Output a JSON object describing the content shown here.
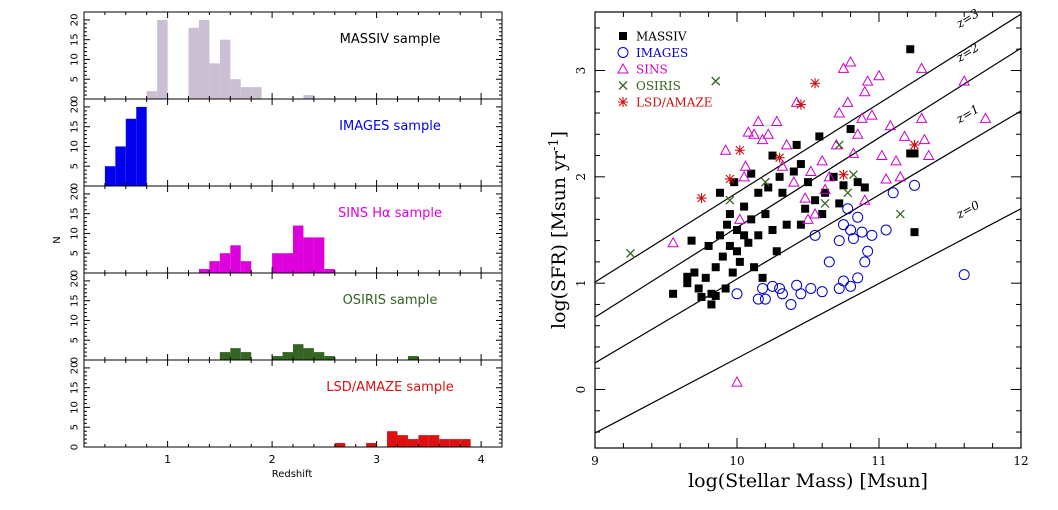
{
  "chart_data": [
    {
      "type": "bar",
      "xlabel": "Redshift",
      "ylabel": "N",
      "xlim": [
        0.2,
        4.2
      ],
      "x_ticks": [
        "1",
        "2",
        "3",
        "4"
      ],
      "y_ticks": [
        "0",
        "5",
        "10",
        "15",
        "20"
      ],
      "bin_width": 0.1,
      "panels": [
        {
          "label": "MASSIV sample",
          "color": "#cbbfd4",
          "ylim": [
            0,
            22
          ],
          "bins": [
            {
              "x": 0.8,
              "n": 2
            },
            {
              "x": 0.9,
              "n": 20
            },
            {
              "x": 1.2,
              "n": 18
            },
            {
              "x": 1.3,
              "n": 20
            },
            {
              "x": 1.4,
              "n": 9
            },
            {
              "x": 1.5,
              "n": 15
            },
            {
              "x": 1.6,
              "n": 5
            },
            {
              "x": 1.7,
              "n": 3
            },
            {
              "x": 1.8,
              "n": 3
            },
            {
              "x": 2.3,
              "n": 1
            }
          ]
        },
        {
          "label": "IMAGES sample",
          "color": "#0000ee",
          "ylim": [
            0,
            22
          ],
          "bins": [
            {
              "x": 0.4,
              "n": 5
            },
            {
              "x": 0.5,
              "n": 10
            },
            {
              "x": 0.6,
              "n": 17
            },
            {
              "x": 0.7,
              "n": 20
            }
          ]
        },
        {
          "label": "SINS Hα sample",
          "color": "#dd00dd",
          "ylim": [
            0,
            22
          ],
          "bins": [
            {
              "x": 1.3,
              "n": 1
            },
            {
              "x": 1.4,
              "n": 3
            },
            {
              "x": 1.5,
              "n": 5
            },
            {
              "x": 1.6,
              "n": 7
            },
            {
              "x": 1.7,
              "n": 3
            },
            {
              "x": 2.0,
              "n": 5
            },
            {
              "x": 2.1,
              "n": 5
            },
            {
              "x": 2.2,
              "n": 12
            },
            {
              "x": 2.3,
              "n": 9
            },
            {
              "x": 2.4,
              "n": 9
            },
            {
              "x": 2.5,
              "n": 1
            }
          ]
        },
        {
          "label": "OSIRIS sample",
          "color": "#336622",
          "ylim": [
            0,
            22
          ],
          "bins": [
            {
              "x": 1.5,
              "n": 2
            },
            {
              "x": 1.6,
              "n": 3
            },
            {
              "x": 1.7,
              "n": 2
            },
            {
              "x": 2.0,
              "n": 1
            },
            {
              "x": 2.1,
              "n": 2
            },
            {
              "x": 2.2,
              "n": 4
            },
            {
              "x": 2.3,
              "n": 3
            },
            {
              "x": 2.4,
              "n": 2
            },
            {
              "x": 2.5,
              "n": 1
            },
            {
              "x": 3.3,
              "n": 1
            }
          ]
        },
        {
          "label": "LSD/AMAZE sample",
          "color": "#dd1111",
          "ylim": [
            0,
            22
          ],
          "bins": [
            {
              "x": 2.6,
              "n": 1
            },
            {
              "x": 2.9,
              "n": 1
            },
            {
              "x": 3.1,
              "n": 4
            },
            {
              "x": 3.2,
              "n": 3
            },
            {
              "x": 3.3,
              "n": 2
            },
            {
              "x": 3.4,
              "n": 3
            },
            {
              "x": 3.5,
              "n": 3
            },
            {
              "x": 3.6,
              "n": 2
            },
            {
              "x": 3.7,
              "n": 2
            },
            {
              "x": 3.8,
              "n": 2
            }
          ]
        }
      ]
    },
    {
      "type": "scatter",
      "xlabel": "log(Stellar Mass) [Msun]",
      "ylabel": "log(SFR) [Msun yr",
      "ylabel_sup": "-1",
      "ylabel_tail": "]",
      "xlim": [
        9,
        12
      ],
      "ylim": [
        -0.55,
        3.55
      ],
      "x_ticks": [
        "9",
        "10",
        "11",
        "12"
      ],
      "y_ticks": [
        "0",
        "1",
        "2",
        "3"
      ],
      "lines": [
        {
          "label": "z=3",
          "points": [
            [
              9,
              1.01
            ],
            [
              12,
              3.53
            ]
          ]
        },
        {
          "label": "z=2",
          "points": [
            [
              9,
              0.68
            ],
            [
              12,
              3.21
            ]
          ]
        },
        {
          "label": "z=1",
          "points": [
            [
              9,
              0.25
            ],
            [
              12,
              2.62
            ]
          ]
        },
        {
          "label": "z=0",
          "points": [
            [
              9,
              -0.41
            ],
            [
              12,
              1.7
            ]
          ]
        }
      ],
      "series": [
        {
          "name": "MASSIV",
          "marker": "filled-square",
          "color": "#000000",
          "points": [
            [
              9.55,
              0.9
            ],
            [
              9.65,
              1.0
            ],
            [
              9.65,
              1.06
            ],
            [
              9.68,
              1.4
            ],
            [
              9.7,
              1.1
            ],
            [
              9.73,
              0.95
            ],
            [
              9.75,
              0.87
            ],
            [
              9.78,
              1.05
            ],
            [
              9.8,
              1.35
            ],
            [
              9.82,
              0.9
            ],
            [
              9.82,
              0.8
            ],
            [
              9.85,
              1.15
            ],
            [
              9.85,
              0.88
            ],
            [
              9.88,
              1.85
            ],
            [
              9.88,
              1.45
            ],
            [
              9.9,
              1.25
            ],
            [
              9.92,
              0.95
            ],
            [
              9.93,
              1.55
            ],
            [
              9.95,
              1.35
            ],
            [
              9.95,
              1.65
            ],
            [
              9.97,
              1.1
            ],
            [
              9.98,
              1.95
            ],
            [
              10.0,
              1.3
            ],
            [
              10.0,
              1.5
            ],
            [
              10.02,
              1.2
            ],
            [
              10.05,
              1.72
            ],
            [
              10.05,
              1.45
            ],
            [
              10.08,
              1.38
            ],
            [
              10.1,
              2.03
            ],
            [
              10.1,
              1.6
            ],
            [
              10.12,
              1.15
            ],
            [
              10.15,
              1.85
            ],
            [
              10.15,
              1.45
            ],
            [
              10.18,
              1.05
            ],
            [
              10.2,
              1.65
            ],
            [
              10.22,
              1.9
            ],
            [
              10.25,
              1.5
            ],
            [
              10.28,
              1.3
            ],
            [
              10.3,
              2.0
            ],
            [
              10.32,
              1.85
            ],
            [
              10.35,
              1.55
            ],
            [
              10.4,
              2.05
            ],
            [
              10.42,
              2.3
            ],
            [
              10.45,
              2.12
            ],
            [
              10.48,
              1.7
            ],
            [
              10.5,
              1.95
            ],
            [
              10.55,
              1.78
            ],
            [
              10.58,
              2.38
            ],
            [
              10.6,
              1.65
            ],
            [
              10.62,
              1.85
            ],
            [
              10.68,
              2.0
            ],
            [
              10.72,
              1.75
            ],
            [
              10.75,
              1.92
            ],
            [
              10.8,
              2.45
            ],
            [
              10.85,
              1.95
            ],
            [
              10.9,
              1.9
            ],
            [
              11.22,
              2.22
            ],
            [
              11.25,
              2.22
            ],
            [
              11.25,
              1.48
            ],
            [
              11.22,
              3.2
            ],
            [
              10.45,
              1.55
            ],
            [
              10.25,
              2.2
            ]
          ]
        },
        {
          "name": "IMAGES",
          "marker": "open-circle",
          "color": "#0000cc",
          "points": [
            [
              10.0,
              0.9
            ],
            [
              10.15,
              0.85
            ],
            [
              10.18,
              0.95
            ],
            [
              10.2,
              0.85
            ],
            [
              10.25,
              0.97
            ],
            [
              10.3,
              0.95
            ],
            [
              10.32,
              0.9
            ],
            [
              10.38,
              0.8
            ],
            [
              10.42,
              0.98
            ],
            [
              10.45,
              0.9
            ],
            [
              10.52,
              0.95
            ],
            [
              10.6,
              0.92
            ],
            [
              10.65,
              1.2
            ],
            [
              10.72,
              0.95
            ],
            [
              10.75,
              1.02
            ],
            [
              10.8,
              0.97
            ],
            [
              10.85,
              1.05
            ],
            [
              10.9,
              1.2
            ],
            [
              10.72,
              1.4
            ],
            [
              10.75,
              1.55
            ],
            [
              10.78,
              1.7
            ],
            [
              10.8,
              1.5
            ],
            [
              10.82,
              1.42
            ],
            [
              10.85,
              1.62
            ],
            [
              10.88,
              1.48
            ],
            [
              10.92,
              1.3
            ],
            [
              10.95,
              1.45
            ],
            [
              11.05,
              1.5
            ],
            [
              11.1,
              1.85
            ],
            [
              11.25,
              1.92
            ],
            [
              10.55,
              1.45
            ],
            [
              11.6,
              1.08
            ]
          ]
        },
        {
          "name": "SINS",
          "marker": "open-triangle",
          "color": "#cc00cc",
          "points": [
            [
              9.55,
              1.38
            ],
            [
              9.92,
              2.25
            ],
            [
              10.05,
              2.0
            ],
            [
              10.08,
              2.42
            ],
            [
              10.12,
              2.4
            ],
            [
              10.15,
              2.52
            ],
            [
              10.18,
              2.35
            ],
            [
              10.22,
              2.4
            ],
            [
              10.28,
              2.52
            ],
            [
              10.32,
              2.1
            ],
            [
              10.35,
              2.3
            ],
            [
              10.4,
              1.95
            ],
            [
              10.42,
              2.7
            ],
            [
              10.48,
              1.8
            ],
            [
              10.52,
              2.05
            ],
            [
              10.55,
              1.65
            ],
            [
              10.6,
              2.15
            ],
            [
              10.62,
              1.88
            ],
            [
              10.65,
              2.0
            ],
            [
              10.7,
              2.3
            ],
            [
              10.72,
              2.6
            ],
            [
              10.75,
              3.02
            ],
            [
              10.78,
              2.7
            ],
            [
              10.8,
              3.08
            ],
            [
              10.82,
              2.22
            ],
            [
              10.85,
              2.4
            ],
            [
              10.88,
              2.55
            ],
            [
              10.9,
              1.78
            ],
            [
              10.92,
              2.9
            ],
            [
              10.95,
              2.58
            ],
            [
              11.0,
              2.95
            ],
            [
              11.02,
              2.2
            ],
            [
              11.05,
              1.98
            ],
            [
              11.08,
              2.48
            ],
            [
              11.12,
              2.15
            ],
            [
              11.18,
              2.38
            ],
            [
              11.3,
              2.55
            ],
            [
              11.32,
              2.35
            ],
            [
              11.35,
              2.2
            ],
            [
              11.3,
              3.02
            ],
            [
              11.6,
              2.9
            ],
            [
              11.75,
              2.55
            ],
            [
              10.9,
              2.8
            ],
            [
              11.15,
              2.0
            ],
            [
              10.02,
              1.6
            ],
            [
              10.5,
              1.6
            ],
            [
              10.06,
              2.1
            ],
            [
              10.0,
              0.07
            ]
          ]
        },
        {
          "name": "OSIRIS",
          "marker": "cross",
          "color": "#336622",
          "points": [
            [
              9.25,
              1.28
            ],
            [
              9.85,
              2.9
            ],
            [
              9.95,
              1.78
            ],
            [
              10.62,
              1.75
            ],
            [
              10.78,
              1.85
            ],
            [
              10.82,
              2.02
            ],
            [
              10.72,
              2.3
            ],
            [
              11.15,
              1.65
            ],
            [
              10.2,
              1.95
            ]
          ]
        },
        {
          "name": "LSD/AMAZE",
          "marker": "asterisk",
          "color": "#cc1111",
          "points": [
            [
              9.75,
              1.8
            ],
            [
              9.95,
              1.98
            ],
            [
              10.02,
              2.25
            ],
            [
              10.3,
              2.18
            ],
            [
              10.45,
              2.68
            ],
            [
              10.55,
              2.88
            ],
            [
              10.75,
              2.02
            ],
            [
              11.25,
              2.3
            ]
          ]
        }
      ],
      "legend_position": "top-left"
    }
  ]
}
